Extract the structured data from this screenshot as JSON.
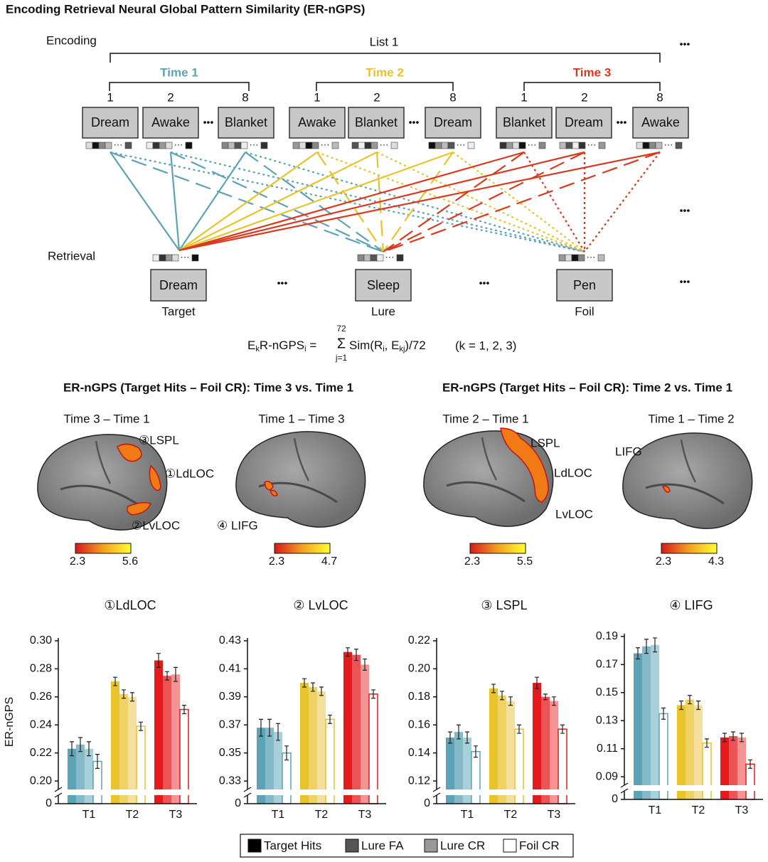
{
  "diagram": {
    "title": "Encoding Retrieval Neural Global Pattern Similarity (ER-nGPS)",
    "encoding_label": "Encoding",
    "list_label": "List 1",
    "retrieval_label": "Retrieval",
    "ellipsis": "•••",
    "dots": "···",
    "times": [
      {
        "name": "Time 1",
        "color": "#5ba3b5",
        "positions": [
          1,
          2,
          8
        ],
        "words": [
          "Dream",
          "Awake",
          "Blanket"
        ]
      },
      {
        "name": "Time 2",
        "color": "#e8c32a",
        "positions": [
          1,
          2,
          8
        ],
        "words": [
          "Awake",
          "Blanket",
          "Dream"
        ]
      },
      {
        "name": "Time 3",
        "color": "#d93a1f",
        "positions": [
          1,
          2,
          8
        ],
        "words": [
          "Blanket",
          "Dream",
          "Awake"
        ]
      }
    ],
    "probes": [
      {
        "word": "Dream",
        "type": "Target"
      },
      {
        "word": "Sleep",
        "type": "Lure"
      },
      {
        "word": "Pen",
        "type": "Foil"
      }
    ],
    "formula": {
      "e": "E",
      "k": "k",
      "r": "R-nGPS",
      "i": "i",
      "eq": " = ",
      "upper": "72",
      "sigma": "Σ",
      "lower": "j=1",
      "sim": "Sim(R",
      "si": "i",
      "comma": ", E",
      "kj": "kj",
      "end": ")/72",
      "note": "(k = 1, 2, 3)"
    }
  },
  "brain_sections": [
    {
      "heading": "ER-nGPS (Target Hits – Foil CR): Time 3 vs. Time 1"
    },
    {
      "heading": "ER-nGPS (Target Hits – Foil CR): Time 2 vs. Time 1"
    }
  ],
  "brain_maps": [
    {
      "title": "Time 3 – Time 1",
      "labels": [
        "③LSPL",
        "①LdLOC",
        "②LvLOC"
      ],
      "colorbar": [
        2.3,
        5.6
      ]
    },
    {
      "title": "Time 1 – Time 3",
      "labels": [
        "④ LIFG"
      ],
      "colorbar": [
        2.3,
        4.7
      ]
    },
    {
      "title": "Time 2 – Time 1",
      "labels": [
        "LSPL",
        "LdLOC",
        "LvLOC"
      ],
      "colorbar": [
        2.3,
        5.5
      ]
    },
    {
      "title": "Time 1 – Time 2",
      "labels": [
        "LIFG"
      ],
      "colorbar": [
        2.3,
        4.3
      ]
    }
  ],
  "chart_data": [
    {
      "type": "bar",
      "title": "①LdLOC",
      "ylabel": "ER-nGPS",
      "categories": [
        "T1",
        "T2",
        "T3"
      ],
      "category_palettes": [
        [
          "#5ba3b5",
          "#85b9c7",
          "#a9cfd9",
          "#ffffff"
        ],
        [
          "#e8c32a",
          "#eed262",
          "#f4e09c",
          "#ffffff"
        ],
        [
          "#e41a1c",
          "#ec5355",
          "#f39394",
          "#ffffff"
        ]
      ],
      "ylim": [
        0.196,
        0.302
      ],
      "break_tick": 0,
      "yticks": [
        {
          "value": 0.2,
          "label": "0.20"
        },
        0.22,
        0.24,
        0.26,
        0.28,
        {
          "value": 0.3,
          "label": "0.30"
        }
      ],
      "series": [
        {
          "name": "Target Hits",
          "color": "#000000",
          "values": [
            0.223,
            0.271,
            0.286
          ],
          "errors": [
            0.005,
            0.003,
            0.005
          ]
        },
        {
          "name": "Lure FA",
          "color": "#555555",
          "values": [
            0.226,
            0.262,
            0.275
          ],
          "errors": [
            0.005,
            0.003,
            0.003
          ]
        },
        {
          "name": "Lure CR",
          "color": "#999999",
          "values": [
            0.223,
            0.26,
            0.276
          ],
          "errors": [
            0.005,
            0.003,
            0.005
          ]
        },
        {
          "name": "Foil CR",
          "color": "#ffffff",
          "values": [
            0.214,
            0.239,
            0.251
          ],
          "errors": [
            0.005,
            0.003,
            0.003
          ]
        }
      ]
    },
    {
      "type": "bar",
      "title": "② LvLOC",
      "categories": [
        "T1",
        "T2",
        "T3"
      ],
      "category_palettes": [
        [
          "#5ba3b5",
          "#85b9c7",
          "#a9cfd9",
          "#ffffff"
        ],
        [
          "#e8c32a",
          "#eed262",
          "#f4e09c",
          "#ffffff"
        ],
        [
          "#e41a1c",
          "#ec5355",
          "#f39394",
          "#ffffff"
        ]
      ],
      "ylim": [
        0.326,
        0.432
      ],
      "break_tick": 0,
      "yticks": [
        0.33,
        0.35,
        0.37,
        0.39,
        0.41,
        0.43
      ],
      "series": [
        {
          "name": "Target Hits",
          "color": "#000000",
          "values": [
            0.368,
            0.4,
            0.422
          ],
          "errors": [
            0.006,
            0.003,
            0.003
          ]
        },
        {
          "name": "Lure FA",
          "color": "#555555",
          "values": [
            0.368,
            0.397,
            0.42
          ],
          "errors": [
            0.006,
            0.003,
            0.004
          ]
        },
        {
          "name": "Lure CR",
          "color": "#999999",
          "values": [
            0.365,
            0.394,
            0.413
          ],
          "errors": [
            0.006,
            0.003,
            0.004
          ]
        },
        {
          "name": "Foil CR",
          "color": "#ffffff",
          "values": [
            0.35,
            0.374,
            0.392
          ],
          "errors": [
            0.005,
            0.003,
            0.003
          ]
        }
      ]
    },
    {
      "type": "bar",
      "title": "③ LSPL",
      "categories": [
        "T1",
        "T2",
        "T3"
      ],
      "category_palettes": [
        [
          "#5ba3b5",
          "#85b9c7",
          "#a9cfd9",
          "#ffffff"
        ],
        [
          "#e8c32a",
          "#eed262",
          "#f4e09c",
          "#ffffff"
        ],
        [
          "#e41a1c",
          "#ec5355",
          "#f39394",
          "#ffffff"
        ]
      ],
      "ylim": [
        0.116,
        0.222
      ],
      "break_tick": 0,
      "yticks": [
        0.12,
        0.14,
        0.16,
        0.18,
        {
          "value": 0.2,
          "label": "0.20"
        },
        0.22
      ],
      "series": [
        {
          "name": "Target Hits",
          "color": "#000000",
          "values": [
            0.151,
            0.186,
            0.19
          ],
          "errors": [
            0.004,
            0.003,
            0.004
          ]
        },
        {
          "name": "Lure FA",
          "color": "#555555",
          "values": [
            0.155,
            0.181,
            0.18
          ],
          "errors": [
            0.005,
            0.003,
            0.002
          ]
        },
        {
          "name": "Lure CR",
          "color": "#999999",
          "values": [
            0.151,
            0.177,
            0.177
          ],
          "errors": [
            0.004,
            0.003,
            0.003
          ]
        },
        {
          "name": "Foil CR",
          "color": "#ffffff",
          "values": [
            0.141,
            0.157,
            0.157
          ],
          "errors": [
            0.004,
            0.003,
            0.003
          ]
        }
      ]
    },
    {
      "type": "bar",
      "title": "④ LIFG",
      "categories": [
        "T1",
        "T2",
        "T3"
      ],
      "category_palettes": [
        [
          "#5ba3b5",
          "#85b9c7",
          "#a9cfd9",
          "#ffffff"
        ],
        [
          "#e8c32a",
          "#eed262",
          "#f4e09c",
          "#ffffff"
        ],
        [
          "#e41a1c",
          "#ec5355",
          "#f39394",
          "#ffffff"
        ]
      ],
      "ylim": [
        0.086,
        0.192
      ],
      "break_tick": 0,
      "yticks": [
        0.09,
        0.11,
        0.13,
        0.15,
        0.17,
        0.19
      ],
      "series": [
        {
          "name": "Target Hits",
          "color": "#000000",
          "values": [
            0.178,
            0.141,
            0.118
          ],
          "errors": [
            0.004,
            0.003,
            0.003
          ]
        },
        {
          "name": "Lure FA",
          "color": "#555555",
          "values": [
            0.183,
            0.145,
            0.119
          ],
          "errors": [
            0.005,
            0.003,
            0.003
          ]
        },
        {
          "name": "Lure CR",
          "color": "#999999",
          "values": [
            0.184,
            0.141,
            0.118
          ],
          "errors": [
            0.005,
            0.003,
            0.003
          ]
        },
        {
          "name": "Foil CR",
          "color": "#ffffff",
          "values": [
            0.135,
            0.114,
            0.099
          ],
          "errors": [
            0.004,
            0.003,
            0.003
          ]
        }
      ]
    }
  ]
}
